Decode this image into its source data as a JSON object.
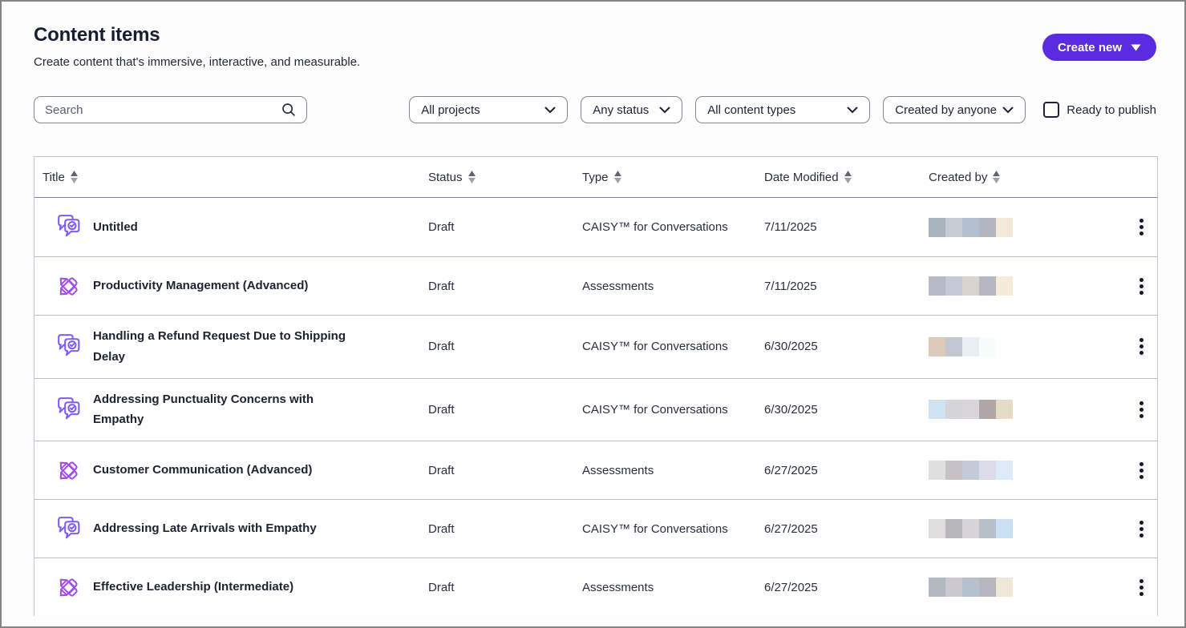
{
  "header": {
    "title": "Content items",
    "subtitle": "Create content that's immersive, interactive, and measurable.",
    "create_button_label": "Create new"
  },
  "filters": {
    "search_placeholder": "Search",
    "project_filter_value": "All projects",
    "status_filter_value": "Any status",
    "content_type_filter_value": "All content types",
    "creator_filter_value": "Created by anyone",
    "ready_checkbox_label": "Ready to publish",
    "ready_checkbox_checked": false
  },
  "table": {
    "columns": [
      "Title",
      "Status",
      "Type",
      "Date Modified",
      "Created by"
    ],
    "rows": [
      {
        "icon": "conversation-icon",
        "title": "Untitled",
        "status": "Draft",
        "type": "CAISY™ for Conversations",
        "date_modified": "7/11/2025",
        "created_by_redacted": [
          "#a9b3be",
          "#c7cbd3",
          "#b3bece",
          "#b3b6be",
          "#f3e9da"
        ]
      },
      {
        "icon": "assessments-icon",
        "title": "Productivity Management (Advanced)",
        "status": "Draft",
        "type": "Assessments",
        "date_modified": "7/11/2025",
        "created_by_redacted": [
          "#b5bac6",
          "#c3c9d5",
          "#d9d4cf",
          "#b5b7c3",
          "#f5ebd9"
        ]
      },
      {
        "icon": "conversation-icon",
        "title": "Handling a Refund Request Due to Shipping Delay",
        "status": "Draft",
        "type": "CAISY™ for Conversations",
        "date_modified": "6/30/2025",
        "created_by_redacted": [
          "#dccaba",
          "#c1c7d1",
          "#e9eef4",
          "#f7fdfc"
        ]
      },
      {
        "icon": "conversation-icon",
        "title": "Addressing Punctuality Concerns with Empathy",
        "status": "Draft",
        "type": "CAISY™ for Conversations",
        "date_modified": "6/30/2025",
        "created_by_redacted": [
          "#cfe2f1",
          "#d5d5d7",
          "#d9d6d9",
          "#b1a5a5",
          "#e4dbc9"
        ]
      },
      {
        "icon": "assessments-icon",
        "title": "Customer Communication (Advanced)",
        "status": "Draft",
        "type": "Assessments",
        "date_modified": "6/27/2025",
        "created_by_redacted": [
          "#e0dfe0",
          "#c5c1c5",
          "#c3cbd9",
          "#dbdce7",
          "#dcebf7"
        ]
      },
      {
        "icon": "conversation-icon",
        "title": "Addressing Late Arrivals with Empathy",
        "status": "Draft",
        "type": "CAISY™ for Conversations",
        "date_modified": "6/27/2025",
        "created_by_redacted": [
          "#e0dedd",
          "#b9b9bd",
          "#d8d5da",
          "#b7bfcb",
          "#cbdff2"
        ]
      },
      {
        "icon": "assessments-icon",
        "title": "Effective Leadership (Intermediate)",
        "status": "Draft",
        "type": "Assessments",
        "date_modified": "6/27/2025",
        "created_by_redacted": [
          "#b3b9c1",
          "#cbc8cf",
          "#b7c0ce",
          "#b7b6be",
          "#efe7d7"
        ]
      }
    ]
  },
  "colors": {
    "accent_purple": "#5b2be2",
    "conversation_icon_purple": "#7d5bf6",
    "assessment_icon_purple": "#a34ce8",
    "header_text": "#181e32"
  }
}
